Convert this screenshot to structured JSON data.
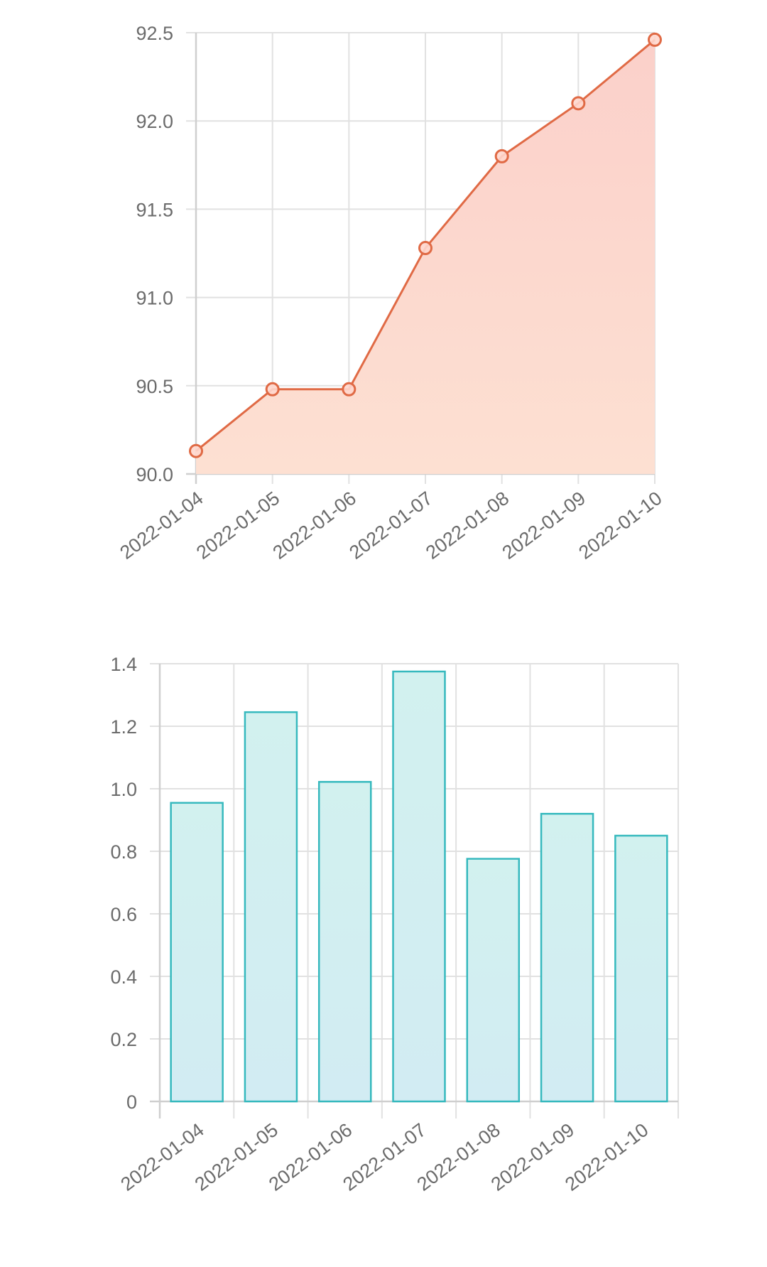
{
  "colors": {
    "line_stroke": "#e06a45",
    "line_fill_top": "#fbd0ca",
    "line_fill_bottom": "#fde0d2",
    "bar_stroke": "#36b9be",
    "bar_fill_top": "#d2f1ef",
    "bar_fill_bottom": "#d2ecf3",
    "grid": "#e1e1e1",
    "axis": "#cfcfcf",
    "tick_text": "#6b6b6b"
  },
  "chart_data": [
    {
      "type": "area",
      "title": "",
      "xlabel": "",
      "ylabel": "",
      "categories": [
        "2022-01-04",
        "2022-01-05",
        "2022-01-06",
        "2022-01-07",
        "2022-01-08",
        "2022-01-09",
        "2022-01-10"
      ],
      "values": [
        90.13,
        90.48,
        90.48,
        91.28,
        91.8,
        92.1,
        92.46
      ],
      "ylim": [
        90.0,
        92.5
      ],
      "yticks": [
        "90.0",
        "90.5",
        "91.0",
        "91.5",
        "92.0",
        "92.5"
      ],
      "grid": true,
      "markers": true
    },
    {
      "type": "bar",
      "title": "",
      "xlabel": "",
      "ylabel": "",
      "categories": [
        "2022-01-04",
        "2022-01-05",
        "2022-01-06",
        "2022-01-07",
        "2022-01-08",
        "2022-01-09",
        "2022-01-10"
      ],
      "values": [
        0.955,
        1.245,
        1.022,
        1.375,
        0.776,
        0.92,
        0.85
      ],
      "ylim": [
        0,
        1.4
      ],
      "yticks": [
        "0",
        "0.2",
        "0.4",
        "0.6",
        "0.8",
        "1.0",
        "1.2",
        "1.4"
      ],
      "grid": true
    }
  ]
}
